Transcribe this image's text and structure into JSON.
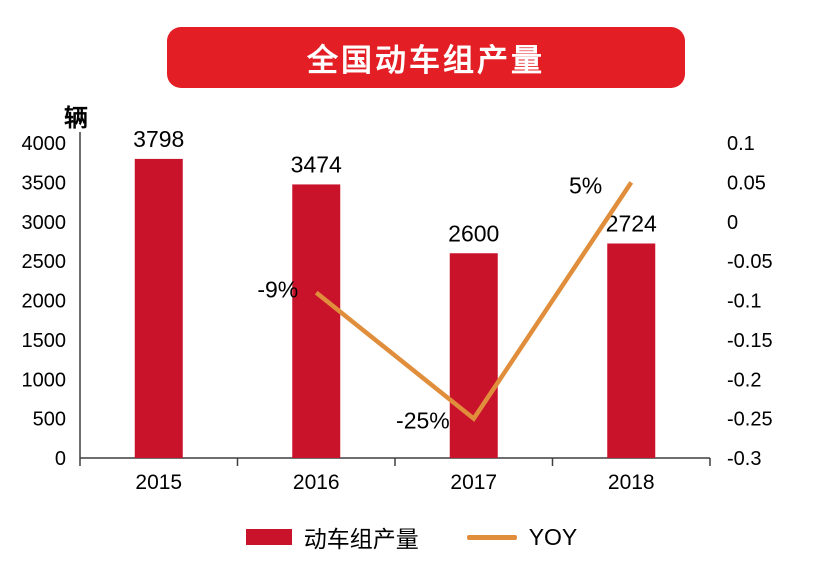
{
  "chart_data": {
    "type": "combo",
    "title": "全国动车组产量",
    "ylabel": "辆",
    "categories": [
      "2015",
      "2016",
      "2017",
      "2018"
    ],
    "series": [
      {
        "name": "动车组产量",
        "type": "bar",
        "axis": "left",
        "values": [
          3798,
          3474,
          2600,
          2724
        ],
        "labels": [
          "3798",
          "3474",
          "2600",
          "2724"
        ]
      },
      {
        "name": "YOY",
        "type": "line",
        "axis": "right",
        "values": [
          null,
          -0.09,
          -0.25,
          0.05
        ],
        "labels": [
          null,
          "-9%",
          "-25%",
          "5%"
        ]
      }
    ],
    "left_axis": {
      "min": 0,
      "max": 4000,
      "ticks": [
        "4000",
        "3500",
        "3000",
        "2500",
        "2000",
        "1500",
        "1000",
        "500",
        "0"
      ]
    },
    "right_axis": {
      "min": -0.3,
      "max": 0.1,
      "ticks": [
        "0.1",
        "0.05",
        "0",
        "-0.05",
        "-0.1",
        "-0.15",
        "-0.2",
        "-0.25",
        "-0.3"
      ]
    },
    "legend_position": "bottom",
    "grid": false
  },
  "colors": {
    "banner_red": "#E31E24",
    "bar_red": "#C9132B",
    "line_orange": "#E08E3C",
    "text": "#000000",
    "axis": "#3f3f3f"
  }
}
